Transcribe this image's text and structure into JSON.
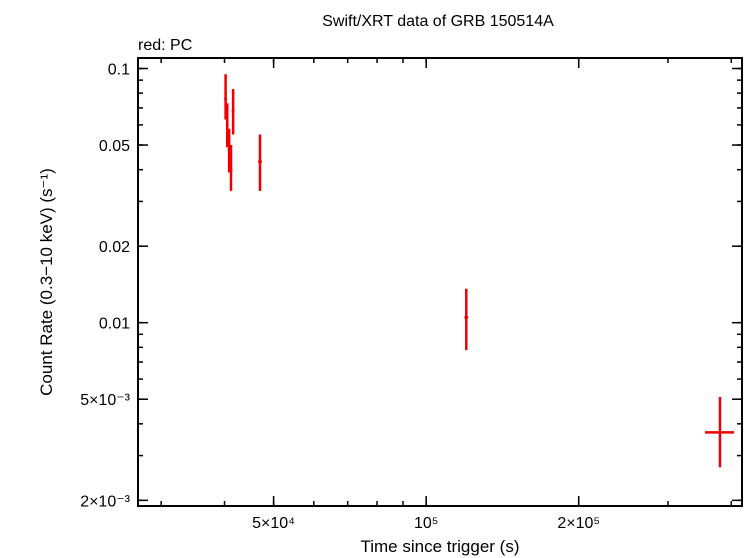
{
  "chart_data": {
    "type": "scatter",
    "title": "Swift/XRT data of GRB 150514A",
    "subtitle": "red: PC",
    "xlabel": "Time since trigger (s)",
    "ylabel": "Count Rate (0.3−10 keV) (s⁻¹)",
    "xscale": "log",
    "yscale": "log",
    "xlim": [
      27000,
      420000
    ],
    "ylim": [
      0.0019,
      0.11
    ],
    "x_ticks": [
      {
        "value": 50000,
        "label": "5×10⁴"
      },
      {
        "value": 100000,
        "label": "10⁵"
      },
      {
        "value": 200000,
        "label": "2×10⁵"
      }
    ],
    "y_ticks": [
      {
        "value": 0.1,
        "label": "0.1"
      },
      {
        "value": 0.05,
        "label": "0.05"
      },
      {
        "value": 0.02,
        "label": "0.02"
      },
      {
        "value": 0.01,
        "label": "0.01"
      },
      {
        "value": 0.005,
        "label": "5×10⁻³"
      },
      {
        "value": 0.002,
        "label": "2×10⁻³"
      }
    ],
    "grid": false,
    "legend": "none",
    "series": [
      {
        "color": "#ee0000",
        "points": [
          {
            "x": 40200,
            "xlo": 40050,
            "xhi": 40350,
            "y": 0.076,
            "ylo": 0.063,
            "yhi": 0.095
          },
          {
            "x": 40500,
            "xlo": 40350,
            "xhi": 40650,
            "y": 0.06,
            "ylo": 0.049,
            "yhi": 0.073
          },
          {
            "x": 40850,
            "xlo": 40700,
            "xhi": 41000,
            "y": 0.048,
            "ylo": 0.039,
            "yhi": 0.058
          },
          {
            "x": 41200,
            "xlo": 41000,
            "xhi": 41400,
            "y": 0.04,
            "ylo": 0.033,
            "yhi": 0.05
          },
          {
            "x": 41600,
            "xlo": 41400,
            "xhi": 41800,
            "y": 0.068,
            "ylo": 0.055,
            "yhi": 0.083
          },
          {
            "x": 47000,
            "xlo": 46600,
            "xhi": 47400,
            "y": 0.043,
            "ylo": 0.033,
            "yhi": 0.055
          },
          {
            "x": 120000,
            "xlo": 119000,
            "xhi": 121000,
            "y": 0.0105,
            "ylo": 0.0078,
            "yhi": 0.0136
          },
          {
            "x": 380000,
            "xlo": 355000,
            "xhi": 405000,
            "y": 0.0037,
            "ylo": 0.0027,
            "yhi": 0.0051
          }
        ]
      }
    ]
  }
}
